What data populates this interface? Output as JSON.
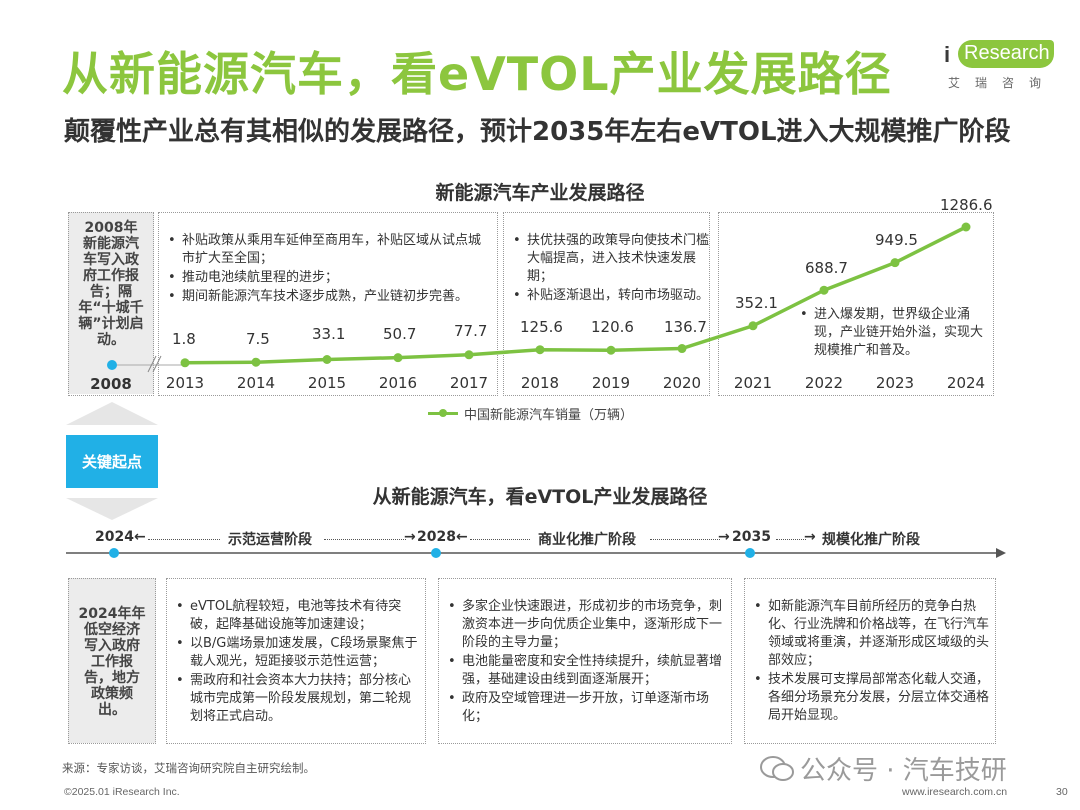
{
  "header": {
    "title": "从新能源汽车，看eVTOL产业发展路径",
    "subtitle": "颠覆性产业总有其相似的发展路径，预计2035年左右eVTOL进入大规模推广阶段"
  },
  "logo": {
    "brand_i": "i",
    "brand_text": "Research",
    "brand_cn": "艾瑞咨询",
    "accent": "#8cc63e"
  },
  "chart_section": {
    "title": "新能源汽车产业发展路径",
    "left_note": "2008年新能源汽车写入政府工作报告；隔年“十城千辆”计划启动。",
    "left_year": "2008",
    "period1_bullets": [
      "补贴政策从乘用车延伸至商用车，补贴区域从试点城市扩大至全国；",
      "推动电池续航里程的进步；",
      "期间新能源汽车技术逐步成熟，产业链初步完善。"
    ],
    "period2_bullets": [
      "扶优扶强的政策导向使技术门槛大幅提高，进入技术快速发展期；",
      "补贴逐渐退出，转向市场驱动。"
    ],
    "period3_bullets": [
      "进入爆发期，世界级企业涌现，产业链开始外溢，实现大规模推广和普及。"
    ],
    "legend": "中国新能源汽车销量（万辆）"
  },
  "chart_data": {
    "type": "line",
    "x": [
      "2013",
      "2014",
      "2015",
      "2016",
      "2017",
      "2018",
      "2019",
      "2020",
      "2021",
      "2022",
      "2023",
      "2024"
    ],
    "series": [
      {
        "name": "中国新能源汽车销量（万辆）",
        "values": [
          1.8,
          7.5,
          33.1,
          50.7,
          77.7,
          125.6,
          120.6,
          136.7,
          352.1,
          688.7,
          949.5,
          1286.6
        ]
      }
    ],
    "title": "新能源汽车产业发展路径",
    "ylim": [
      0,
      1300
    ],
    "color": "#7dc242"
  },
  "key_button": "关键起点",
  "timeline": {
    "title": "从新能源汽车，看eVTOL产业发展路径",
    "y2024": "2024",
    "stage1": "示范运营阶段",
    "y2028": "2028",
    "stage2": "商业化推广阶段",
    "y2035": "2035",
    "stage3": "规模化推广阶段",
    "dot_color": "#21b0e6"
  },
  "bottom_section": {
    "left_note": "2024年年低空经济写入政府工作报告，地方政策频出。",
    "col1_bullets": [
      "eVTOL航程较短，电池等技术有待突破，起降基础设施等加速建设；",
      "以B/G端场景加速发展，C段场景聚焦于载人观光，短距接驳示范性运营；",
      "需政府和社会资本大力扶持；部分核心城市完成第一阶段发展规划，第二轮规划将正式启动。"
    ],
    "col2_bullets": [
      "多家企业快速跟进，形成初步的市场竞争，刺激资本进一步向优质企业集中，逐渐形成下一阶段的主导力量；",
      "电池能量密度和安全性持续提升，续航显著增强，基础建设由线到面逐渐展开；",
      "政府及空域管理进一步开放，订单逐渐市场化；"
    ],
    "col3_bullets": [
      "如新能源汽车目前所经历的竞争白热化、行业洗牌和价格战等，在飞行汽车领域或将重演，并逐渐形成区域级的头部效应；",
      "技术发展可支撑局部常态化载人交通，各细分场景充分发展，分层立体交通格局开始显现。"
    ]
  },
  "footer": {
    "source": "来源：专家访谈，艾瑞咨询研究院自主研究绘制。",
    "copyright": "©2025.01 iResearch Inc.",
    "website": "www.iresearch.com.cn",
    "page": "30",
    "watermark": "公众号 · 汽车技研"
  }
}
